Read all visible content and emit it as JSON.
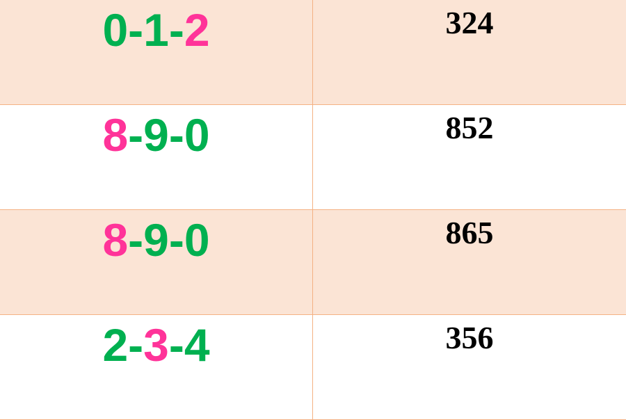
{
  "colors": {
    "green": "#00b050",
    "pink": "#ff3399",
    "shade": "#fbe4d5",
    "border": "#f4b183"
  },
  "rows": [
    {
      "combo": [
        {
          "d": "0",
          "c": "g"
        },
        {
          "d": "-",
          "c": "g"
        },
        {
          "d": "1",
          "c": "g"
        },
        {
          "d": "-",
          "c": "g"
        },
        {
          "d": "2",
          "c": "p"
        }
      ],
      "number": "324"
    },
    {
      "combo": [
        {
          "d": "8",
          "c": "p"
        },
        {
          "d": "-",
          "c": "g"
        },
        {
          "d": "9",
          "c": "g"
        },
        {
          "d": "-",
          "c": "g"
        },
        {
          "d": "0",
          "c": "g"
        }
      ],
      "number": "852"
    },
    {
      "combo": [
        {
          "d": "8",
          "c": "p"
        },
        {
          "d": "-",
          "c": "g"
        },
        {
          "d": "9",
          "c": "g"
        },
        {
          "d": "-",
          "c": "g"
        },
        {
          "d": "0",
          "c": "g"
        }
      ],
      "number": "865"
    },
    {
      "combo": [
        {
          "d": "2",
          "c": "g"
        },
        {
          "d": "-",
          "c": "g"
        },
        {
          "d": "3",
          "c": "p"
        },
        {
          "d": "-",
          "c": "g"
        },
        {
          "d": "4",
          "c": "g"
        }
      ],
      "number": "356"
    }
  ]
}
